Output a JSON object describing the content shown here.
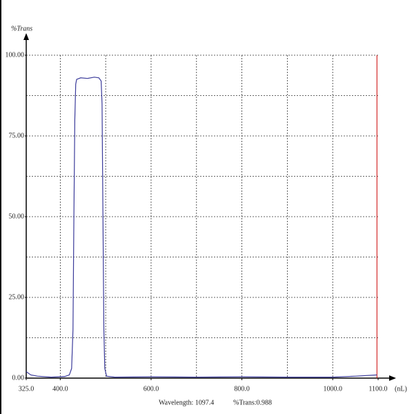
{
  "chart_data": {
    "type": "line",
    "y_label": "%Trans",
    "x_unit": "(nL)",
    "readout_wavelength": "Wavelength: 1097.4",
    "readout_trans": "%Trans:0.988",
    "cursor_x": 1097.4,
    "cursor_color": "#cc0000",
    "x": [
      325,
      335,
      350,
      380,
      410,
      420,
      425,
      428,
      430,
      432,
      434,
      436,
      445,
      460,
      475,
      485,
      490,
      492,
      494,
      496,
      498,
      502,
      520,
      600,
      700,
      800,
      900,
      1000,
      1050,
      1097.4
    ],
    "series": [
      {
        "name": "%Trans",
        "color": "#3a3a9a",
        "values": [
          2,
          1,
          0.6,
          0.3,
          0.5,
          1,
          3,
          15,
          50,
          80,
          91,
          92.5,
          93,
          92.8,
          93.2,
          93,
          92,
          85,
          50,
          15,
          3,
          0.6,
          0.3,
          0.4,
          0.3,
          0.4,
          0.3,
          0.3,
          0.6,
          0.988
        ]
      }
    ],
    "xlim": [
      325,
      1100
    ],
    "ylim": [
      0,
      100
    ],
    "xticks": [
      {
        "value": 325,
        "label": "325.0"
      },
      {
        "value": 400,
        "label": "400.0"
      },
      {
        "value": 600,
        "label": "600.0"
      },
      {
        "value": 800,
        "label": "800.0"
      },
      {
        "value": 1000,
        "label": "1000.0"
      },
      {
        "value": 1100,
        "label": "1100.0"
      }
    ],
    "yticks": [
      {
        "value": 0,
        "label": "0.00"
      },
      {
        "value": 25,
        "label": "25.00"
      },
      {
        "value": 50,
        "label": "50.00"
      },
      {
        "value": 75,
        "label": "75.00"
      },
      {
        "value": 100,
        "label": "100.00"
      }
    ],
    "xgrid": [
      400,
      500,
      600,
      700,
      800,
      900,
      1000
    ],
    "ygrid": [
      12.5,
      25,
      37.5,
      50,
      62.5,
      75,
      87.5,
      100
    ],
    "grid": true
  }
}
